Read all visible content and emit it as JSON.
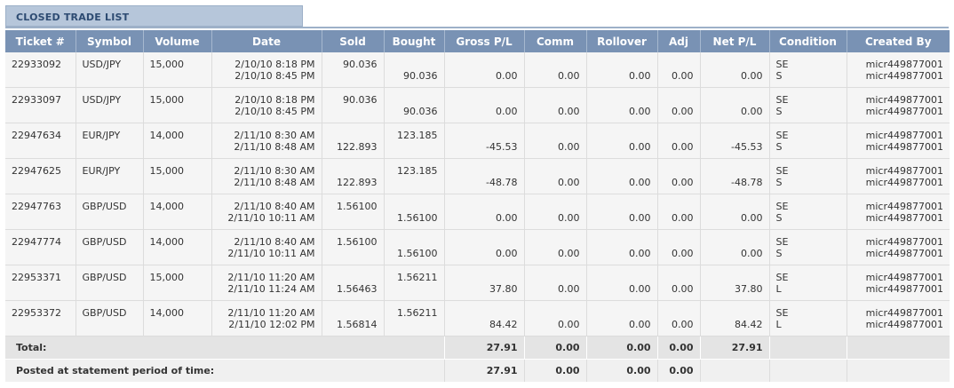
{
  "section": {
    "title": "CLOSED TRADE LIST"
  },
  "columns": [
    "Ticket #",
    "Symbol",
    "Volume",
    "Date",
    "Sold",
    "Bought",
    "Gross P/L",
    "Comm",
    "Rollover",
    "Adj",
    "Net P/L",
    "Condition",
    "Created By"
  ],
  "rows": [
    {
      "ticket": "22933092",
      "symbol": "USD/JPY",
      "volume": "15,000",
      "date_open": "2/10/10 8:18 PM",
      "date_close": "2/10/10 8:45 PM",
      "sold": "90.036",
      "bought": "90.036",
      "gross_pl": "0.00",
      "comm": "0.00",
      "rollover": "0.00",
      "adj": "0.00",
      "net_pl": "0.00",
      "cond_open": "SE",
      "cond_close": "S",
      "created_open": "micr449877001",
      "created_close": "micr449877001"
    },
    {
      "ticket": "22933097",
      "symbol": "USD/JPY",
      "volume": "15,000",
      "date_open": "2/10/10 8:18 PM",
      "date_close": "2/10/10 8:45 PM",
      "sold": "90.036",
      "bought": "90.036",
      "gross_pl": "0.00",
      "comm": "0.00",
      "rollover": "0.00",
      "adj": "0.00",
      "net_pl": "0.00",
      "cond_open": "SE",
      "cond_close": "S",
      "created_open": "micr449877001",
      "created_close": "micr449877001"
    },
    {
      "ticket": "22947634",
      "symbol": "EUR/JPY",
      "volume": "14,000",
      "date_open": "2/11/10 8:30 AM",
      "date_close": "2/11/10 8:48 AM",
      "sold": "122.893",
      "bought": "123.185",
      "gross_pl": "-45.53",
      "comm": "0.00",
      "rollover": "0.00",
      "adj": "0.00",
      "net_pl": "-45.53",
      "cond_open": "SE",
      "cond_close": "S",
      "created_open": "micr449877001",
      "created_close": "micr449877001"
    },
    {
      "ticket": "22947625",
      "symbol": "EUR/JPY",
      "volume": "15,000",
      "date_open": "2/11/10 8:30 AM",
      "date_close": "2/11/10 8:48 AM",
      "sold": "122.893",
      "bought": "123.185",
      "gross_pl": "-48.78",
      "comm": "0.00",
      "rollover": "0.00",
      "adj": "0.00",
      "net_pl": "-48.78",
      "cond_open": "SE",
      "cond_close": "S",
      "created_open": "micr449877001",
      "created_close": "micr449877001"
    },
    {
      "ticket": "22947763",
      "symbol": "GBP/USD",
      "volume": "14,000",
      "date_open": "2/11/10 8:40 AM",
      "date_close": "2/11/10 10:11 AM",
      "sold": "1.56100",
      "bought": "1.56100",
      "gross_pl": "0.00",
      "comm": "0.00",
      "rollover": "0.00",
      "adj": "0.00",
      "net_pl": "0.00",
      "cond_open": "SE",
      "cond_close": "S",
      "created_open": "micr449877001",
      "created_close": "micr449877001"
    },
    {
      "ticket": "22947774",
      "symbol": "GBP/USD",
      "volume": "14,000",
      "date_open": "2/11/10 8:40 AM",
      "date_close": "2/11/10 10:11 AM",
      "sold": "1.56100",
      "bought": "1.56100",
      "gross_pl": "0.00",
      "comm": "0.00",
      "rollover": "0.00",
      "adj": "0.00",
      "net_pl": "0.00",
      "cond_open": "SE",
      "cond_close": "S",
      "created_open": "micr449877001",
      "created_close": "micr449877001"
    },
    {
      "ticket": "22953371",
      "symbol": "GBP/USD",
      "volume": "15,000",
      "date_open": "2/11/10 11:20 AM",
      "date_close": "2/11/10 11:24 AM",
      "sold": "1.56463",
      "bought": "1.56211",
      "gross_pl": "37.80",
      "comm": "0.00",
      "rollover": "0.00",
      "adj": "0.00",
      "net_pl": "37.80",
      "cond_open": "SE",
      "cond_close": "L",
      "created_open": "micr449877001",
      "created_close": "micr449877001"
    },
    {
      "ticket": "22953372",
      "symbol": "GBP/USD",
      "volume": "14,000",
      "date_open": "2/11/10 11:20 AM",
      "date_close": "2/11/10 12:02 PM",
      "sold": "1.56814",
      "bought": "1.56211",
      "gross_pl": "84.42",
      "comm": "0.00",
      "rollover": "0.00",
      "adj": "0.00",
      "net_pl": "84.42",
      "cond_open": "SE",
      "cond_close": "L",
      "created_open": "micr449877001",
      "created_close": "micr449877001"
    }
  ],
  "row_layout": [
    {
      "sold_line": "top",
      "bought_line": "bottom"
    },
    {
      "sold_line": "top",
      "bought_line": "bottom"
    },
    {
      "sold_line": "bottom",
      "bought_line": "top"
    },
    {
      "sold_line": "bottom",
      "bought_line": "top"
    },
    {
      "sold_line": "top",
      "bought_line": "bottom"
    },
    {
      "sold_line": "top",
      "bought_line": "bottom"
    },
    {
      "sold_line": "bottom",
      "bought_line": "top"
    },
    {
      "sold_line": "bottom",
      "bought_line": "top"
    }
  ],
  "totals": {
    "label": "Total:",
    "gross_pl": "27.91",
    "comm": "0.00",
    "rollover": "0.00",
    "adj": "0.00",
    "net_pl": "27.91"
  },
  "posted": {
    "label": "Posted at statement period of time:",
    "gross_pl": "27.91",
    "comm": "0.00",
    "rollover": "0.00",
    "adj": "0.00"
  }
}
